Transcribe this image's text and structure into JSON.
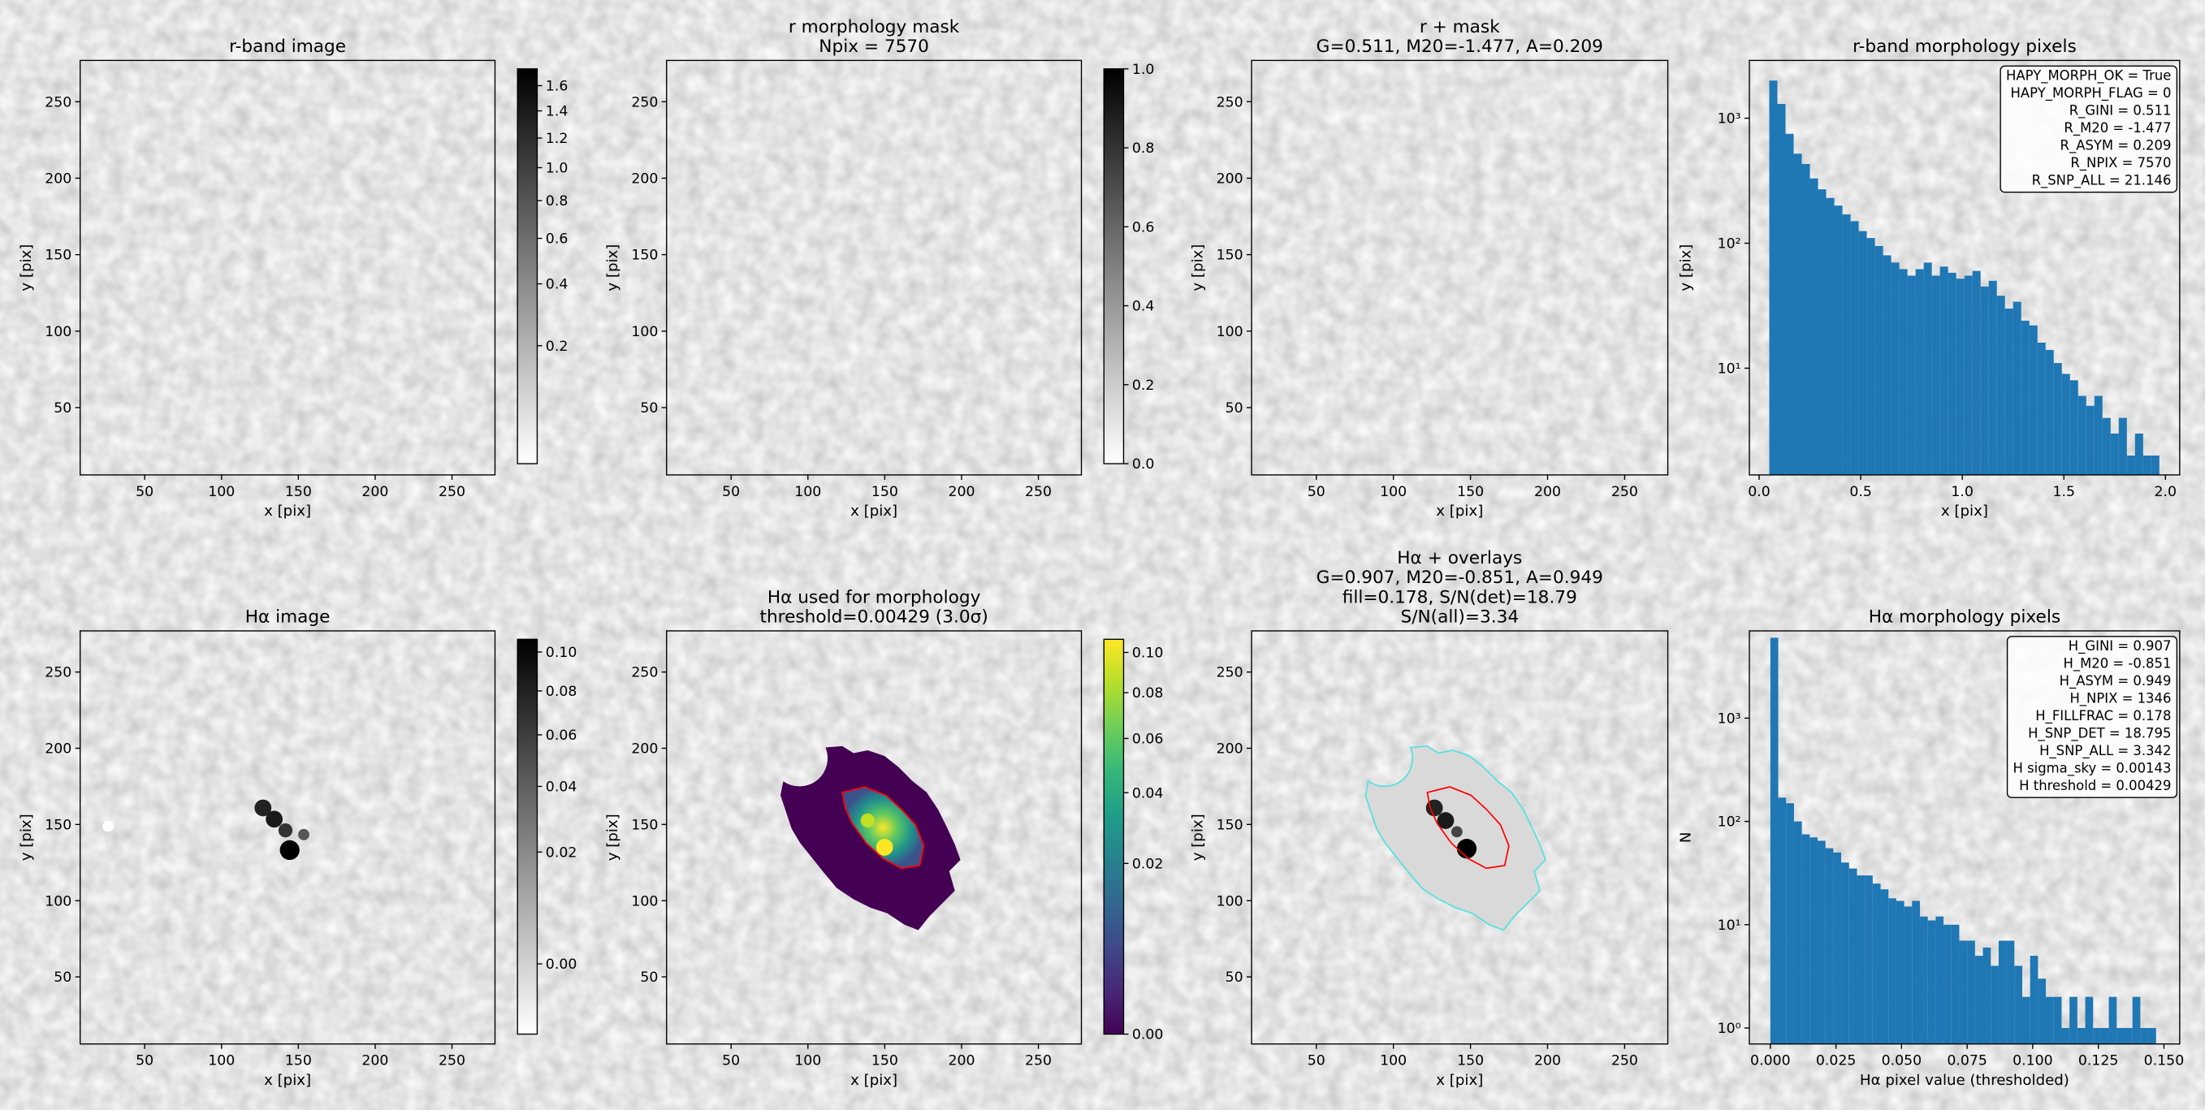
{
  "chart_data": [
    {
      "type": "image",
      "title": [
        "r-band image"
      ],
      "xlabel": "x [pix]",
      "ylabel": "y [pix]",
      "xlim": [
        8,
        278
      ],
      "ylim": [
        6,
        277
      ],
      "xticks": [
        50,
        100,
        150,
        200,
        250
      ],
      "yticks": [
        50,
        100,
        150,
        200,
        250
      ],
      "colorbar": {
        "cmap": "gray_r",
        "scale": "sqrt",
        "lim": [
          0.049,
          1.741
        ],
        "ticks": [
          0.2,
          0.4,
          0.6,
          0.8,
          {
            "value": 1,
            "label": "1.0"
          },
          1.2,
          1.4,
          1.6
        ]
      }
    },
    {
      "type": "image",
      "title": [
        "r morphology mask",
        "Npix = 7570"
      ],
      "xlabel": "x [pix]",
      "ylabel": "y [pix]",
      "xlim": [
        8,
        278
      ],
      "ylim": [
        6,
        277
      ],
      "xticks": [
        50,
        100,
        150,
        200,
        250
      ],
      "yticks": [
        50,
        100,
        150,
        200,
        250
      ],
      "colorbar": {
        "cmap": "gray_r",
        "scale": "linear",
        "lim": [
          0,
          1
        ],
        "ticks": [
          {
            "value": 0,
            "label": "0.0"
          },
          0.2,
          0.4,
          0.6,
          0.8,
          {
            "value": 1,
            "label": "1.0"
          }
        ]
      }
    },
    {
      "type": "image",
      "title": [
        "r + mask",
        "G=0.511, M20=-1.477, A=0.209"
      ],
      "xlabel": "x [pix]",
      "ylabel": "y [pix]",
      "xlim": [
        8,
        278
      ],
      "ylim": [
        6,
        277
      ],
      "xticks": [
        50,
        100,
        150,
        200,
        250
      ],
      "yticks": [
        50,
        100,
        150,
        200,
        250
      ]
    },
    {
      "type": "histogram",
      "title": [
        "r-band morphology pixels"
      ],
      "xlabel": "x [pix]",
      "ylabel": "y [pix]",
      "xlim": [
        -0.048,
        2.07
      ],
      "ylim": [
        1.4,
        2900
      ],
      "yscale": "log",
      "color": "#1f77b4",
      "xticks": [
        {
          "value": 0,
          "label": "0.0"
        },
        0.5,
        {
          "value": 1,
          "label": "1.0"
        },
        1.5,
        {
          "value": 2,
          "label": "2.0"
        }
      ],
      "yticks": [
        {
          "value": 10,
          "label": "10¹"
        },
        {
          "value": 100,
          "label": "10²"
        },
        {
          "value": 1000,
          "label": "10³"
        }
      ],
      "bins": [
        0.05,
        0.09,
        0.13,
        0.17,
        0.21,
        0.25,
        0.29,
        0.33,
        0.37,
        0.41,
        0.45,
        0.49,
        0.53,
        0.57,
        0.61,
        0.65,
        0.69,
        0.73,
        0.77,
        0.81,
        0.85,
        0.89,
        0.93,
        0.97,
        1.01,
        1.05,
        1.09,
        1.13,
        1.17,
        1.21,
        1.25,
        1.29,
        1.33,
        1.37,
        1.41,
        1.45,
        1.49,
        1.53,
        1.57,
        1.61,
        1.65,
        1.69,
        1.73,
        1.77,
        1.81,
        1.85,
        1.89,
        1.93,
        1.97
      ],
      "values": [
        2000,
        1300,
        750,
        520,
        430,
        330,
        270,
        230,
        200,
        170,
        150,
        125,
        110,
        95,
        80,
        70,
        62,
        55,
        62,
        70,
        55,
        65,
        58,
        52,
        55,
        60,
        45,
        50,
        38,
        30,
        34,
        24,
        22,
        16,
        14,
        11,
        9,
        8,
        6,
        5,
        6,
        4,
        3,
        4,
        2,
        3,
        2,
        2
      ],
      "annotation_loc": "upper right",
      "annotation": [
        "HAPY_MORPH_OK = True",
        "HAPY_MORPH_FLAG = 0",
        "R_GINI = 0.511",
        "R_M20 = -1.477",
        "R_ASYM = 0.209",
        "R_NPIX = 7570",
        "R_SNP_ALL = 21.146"
      ]
    },
    {
      "type": "image",
      "title": [
        "Hα image"
      ],
      "xlabel": "x [pix]",
      "ylabel": "y [pix]",
      "xlim": [
        8,
        278
      ],
      "ylim": [
        6,
        277
      ],
      "xticks": [
        50,
        100,
        150,
        200,
        250
      ],
      "yticks": [
        50,
        100,
        150,
        200,
        250
      ],
      "colorbar": {
        "cmap": "gray_r",
        "scale": "sqrt",
        "lim": [
          -0.0035,
          0.107
        ],
        "ticks": [
          {
            "value": 0,
            "label": "0.00"
          },
          {
            "value": 0.02,
            "label": "0.02"
          },
          {
            "value": 0.04,
            "label": "0.04"
          },
          {
            "value": 0.06,
            "label": "0.06"
          },
          {
            "value": 0.08,
            "label": "0.08"
          },
          {
            "value": 0.1,
            "label": "0.10"
          }
        ]
      }
    },
    {
      "type": "image",
      "title": [
        "Hα used for morphology",
        "threshold=0.00429 (3.0σ)"
      ],
      "xlabel": "x [pix]",
      "ylabel": "y [pix]",
      "xlim": [
        8,
        278
      ],
      "ylim": [
        6,
        277
      ],
      "xticks": [
        50,
        100,
        150,
        200,
        250
      ],
      "yticks": [
        50,
        100,
        150,
        200,
        250
      ],
      "colorbar": {
        "cmap": "viridis",
        "scale": "sqrt",
        "lim": [
          0,
          0.107
        ],
        "ticks": [
          {
            "value": 0,
            "label": "0.00"
          },
          {
            "value": 0.02,
            "label": "0.02"
          },
          {
            "value": 0.04,
            "label": "0.04"
          },
          {
            "value": 0.06,
            "label": "0.06"
          },
          {
            "value": 0.08,
            "label": "0.08"
          },
          {
            "value": 0.1,
            "label": "0.10"
          }
        ]
      }
    },
    {
      "type": "image",
      "title": [
        "Hα + overlays",
        "G=0.907, M20=-0.851, A=0.949",
        "fill=0.178, S/N(det)=18.79",
        "S/N(all)=3.34"
      ],
      "xlabel": "x [pix]",
      "ylabel": "y [pix]",
      "xlim": [
        8,
        278
      ],
      "ylim": [
        6,
        277
      ],
      "xticks": [
        50,
        100,
        150,
        200,
        250
      ],
      "yticks": [
        50,
        100,
        150,
        200,
        250
      ]
    },
    {
      "type": "histogram",
      "title": [
        "Hα morphology pixels"
      ],
      "xlabel": "Hα pixel value (thresholded)",
      "ylabel": "N",
      "xlim": [
        -0.008,
        0.156
      ],
      "ylim": [
        0.7,
        7000
      ],
      "yscale": "log",
      "color": "#1f77b4",
      "xticks": [
        {
          "value": 0,
          "label": "0.000"
        },
        {
          "value": 0.025,
          "label": "0.025"
        },
        {
          "value": 0.05,
          "label": "0.050"
        },
        {
          "value": 0.075,
          "label": "0.075"
        },
        {
          "value": 0.1,
          "label": "0.100"
        },
        {
          "value": 0.125,
          "label": "0.125"
        },
        {
          "value": 0.15,
          "label": "0.150"
        }
      ],
      "yticks": [
        {
          "value": 1,
          "label": "10⁰"
        },
        {
          "value": 10,
          "label": "10¹"
        },
        {
          "value": 100,
          "label": "10²"
        },
        {
          "value": 1000,
          "label": "10³"
        }
      ],
      "bins": [
        0,
        0.003,
        0.006,
        0.009,
        0.012,
        0.015,
        0.018,
        0.021,
        0.024,
        0.027,
        0.03,
        0.033,
        0.036,
        0.039,
        0.042,
        0.045,
        0.048,
        0.051,
        0.054,
        0.057,
        0.06,
        0.063,
        0.066,
        0.069,
        0.072,
        0.075,
        0.078,
        0.081,
        0.084,
        0.087,
        0.09,
        0.093,
        0.096,
        0.099,
        0.102,
        0.105,
        0.108,
        0.111,
        0.114,
        0.117,
        0.12,
        0.123,
        0.126,
        0.129,
        0.132,
        0.135,
        0.138,
        0.141,
        0.144,
        0.147
      ],
      "values": [
        6000,
        170,
        150,
        100,
        75,
        70,
        65,
        55,
        50,
        40,
        35,
        30,
        30,
        25,
        22,
        18,
        17,
        15,
        17,
        12,
        11,
        12,
        10,
        10,
        7,
        7,
        5,
        6,
        4,
        7,
        7,
        4,
        2,
        5,
        3,
        2,
        2,
        1,
        2,
        1,
        2,
        1,
        1,
        2,
        1,
        1,
        2,
        1,
        1
      ],
      "annotation_loc": "upper right",
      "annotation": [
        "H_GINI = 0.907",
        "H_M20 = -0.851",
        "H_ASYM = 0.949",
        "H_NPIX = 1346",
        "H_FILLFRAC = 0.178",
        "H_SNP_DET = 18.795",
        "H_SNP_ALL = 3.342",
        "H sigma_sky = 0.00143",
        "H threshold = 0.00429"
      ]
    }
  ]
}
